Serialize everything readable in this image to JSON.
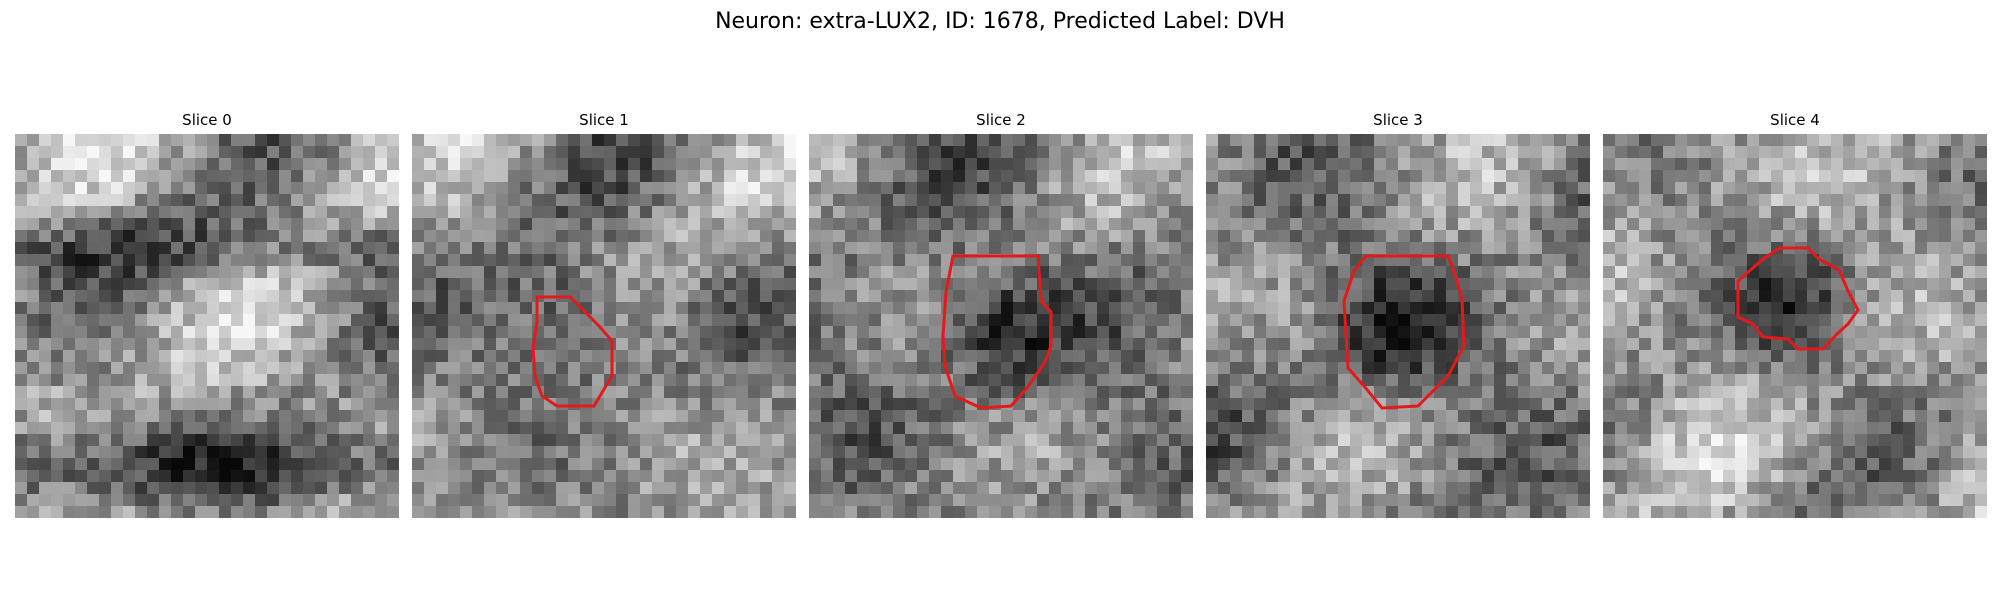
{
  "title": "Neuron: extra-LUX2, ID: 1678, Predicted Label: DVH",
  "colors": {
    "contour": "#e31a1c",
    "background": "#ffffff"
  },
  "slices": [
    {
      "label": "Slice 0",
      "has_roi": false,
      "base_level": 0.62
    },
    {
      "label": "Slice 1",
      "has_roi": true,
      "base_level": 0.55
    },
    {
      "label": "Slice 2",
      "has_roi": true,
      "base_level": 0.5
    },
    {
      "label": "Slice 3",
      "has_roi": true,
      "base_level": 0.52
    },
    {
      "label": "Slice 4",
      "has_roi": true,
      "base_level": 0.6
    }
  ]
}
